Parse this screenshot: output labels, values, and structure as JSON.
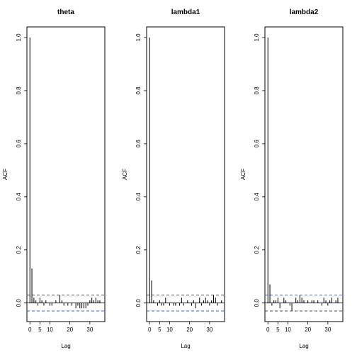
{
  "chart_data": [
    {
      "type": "bar",
      "title": "theta",
      "xlabel": "Lag",
      "ylabel": "ACF",
      "xlim": [
        -1.5,
        37.5
      ],
      "ylim": [
        -0.07,
        1.04
      ],
      "xticks": [
        0,
        5,
        10,
        20,
        30
      ],
      "yticks": [
        0.0,
        0.2,
        0.4,
        0.6,
        0.8,
        1.0
      ],
      "ytick_labels": [
        "0.0",
        "0.2",
        "0.4",
        "0.6",
        "0.8",
        "1.0"
      ],
      "ci_upper": 0.03,
      "ci_lower": -0.03,
      "ci_upper_color": "#4a4a4a",
      "ci_lower_color": "#3a5fe0",
      "x": [
        0,
        1,
        2,
        3,
        4,
        5,
        6,
        7,
        8,
        9,
        10,
        11,
        12,
        13,
        14,
        15,
        16,
        17,
        18,
        19,
        20,
        21,
        22,
        23,
        24,
        25,
        26,
        27,
        28,
        29,
        30,
        31,
        32,
        33,
        34,
        35,
        36
      ],
      "values": [
        1.0,
        0.13,
        0.02,
        0.01,
        -0.01,
        0.02,
        0.01,
        -0.01,
        0.01,
        0.0,
        -0.01,
        -0.01,
        0.0,
        0.01,
        0.0,
        0.03,
        0.01,
        -0.01,
        0.0,
        -0.01,
        0.0,
        -0.01,
        0.0,
        -0.02,
        -0.01,
        -0.02,
        -0.02,
        -0.02,
        -0.02,
        -0.01,
        0.01,
        0.02,
        0.01,
        0.02,
        0.01,
        0.01,
        0.0
      ]
    },
    {
      "type": "bar",
      "title": "lambda1",
      "xlabel": "Lag",
      "ylabel": "ACF",
      "xlim": [
        -1.5,
        37.5
      ],
      "ylim": [
        -0.07,
        1.04
      ],
      "xticks": [
        0,
        5,
        10,
        20,
        30
      ],
      "yticks": [
        0.0,
        0.2,
        0.4,
        0.6,
        0.8,
        1.0
      ],
      "ytick_labels": [
        "0.0",
        "0.2",
        "0.4",
        "0.6",
        "0.8",
        "1.0"
      ],
      "ci_upper": 0.03,
      "ci_lower": -0.03,
      "ci_upper_color": "#4a4a4a",
      "ci_lower_color": "#3a5fe0",
      "x": [
        0,
        1,
        2,
        3,
        4,
        5,
        6,
        7,
        8,
        9,
        10,
        11,
        12,
        13,
        14,
        15,
        16,
        17,
        18,
        19,
        20,
        21,
        22,
        23,
        24,
        25,
        26,
        27,
        28,
        29,
        30,
        31,
        32,
        33,
        34,
        35,
        36
      ],
      "values": [
        1.0,
        0.085,
        0.01,
        0.0,
        -0.01,
        0.01,
        -0.01,
        -0.01,
        0.02,
        0.0,
        -0.01,
        0.0,
        -0.01,
        -0.01,
        0.0,
        -0.01,
        0.02,
        -0.01,
        0.0,
        0.01,
        0.0,
        -0.01,
        0.01,
        -0.02,
        0.0,
        0.02,
        -0.01,
        0.01,
        0.02,
        0.01,
        -0.01,
        0.01,
        0.03,
        0.02,
        -0.01,
        0.0,
        0.01
      ]
    },
    {
      "type": "bar",
      "title": "lambda2",
      "xlabel": "Lag",
      "ylabel": "ACF",
      "xlim": [
        -1.5,
        37.5
      ],
      "ylim": [
        -0.07,
        1.04
      ],
      "xticks": [
        0,
        5,
        10,
        20,
        30
      ],
      "yticks": [
        0.0,
        0.2,
        0.4,
        0.6,
        0.8,
        1.0
      ],
      "ytick_labels": [
        "0.0",
        "0.2",
        "0.4",
        "0.6",
        "0.8",
        "1.0"
      ],
      "ci_upper": 0.03,
      "ci_lower": -0.03,
      "ci_upper_color": "#3a5fe0",
      "ci_lower_color": "#4a4a4a",
      "x": [
        0,
        1,
        2,
        3,
        4,
        5,
        6,
        7,
        8,
        9,
        10,
        11,
        12,
        13,
        14,
        15,
        16,
        17,
        18,
        19,
        20,
        21,
        22,
        23,
        24,
        25,
        26,
        27,
        28,
        29,
        30,
        31,
        32,
        33,
        34,
        35,
        36
      ],
      "values": [
        1.0,
        0.07,
        -0.01,
        0.01,
        0.01,
        0.02,
        -0.02,
        0.0,
        0.02,
        0.01,
        0.0,
        -0.01,
        -0.03,
        0.0,
        0.02,
        0.01,
        0.03,
        0.02,
        0.01,
        0.0,
        0.01,
        0.0,
        0.01,
        0.01,
        0.0,
        0.01,
        0.0,
        -0.01,
        0.02,
        0.01,
        -0.01,
        0.01,
        0.02,
        0.0,
        0.01,
        0.02,
        0.0
      ]
    }
  ]
}
